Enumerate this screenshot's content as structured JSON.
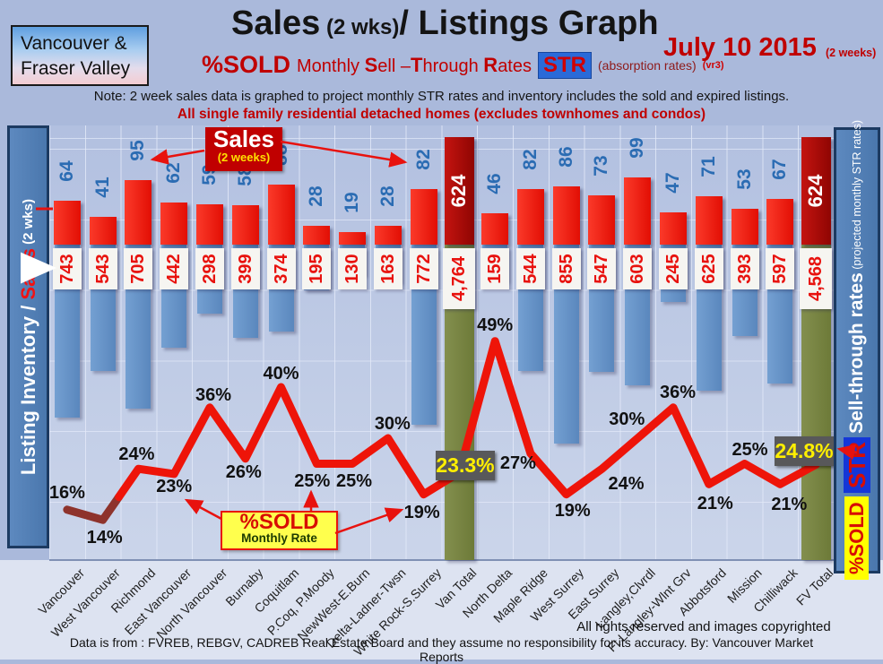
{
  "header": {
    "region_line1": "Vancouver &",
    "region_line2": "Fraser Valley",
    "title_main": "Sales",
    "title_paren": "(2 wks)",
    "title_rest": "/ Listings Graph",
    "date": "July 10 2015",
    "date_note": "(2 weeks)",
    "sold_label": "%SOLD",
    "str_phrase_parts": [
      [
        "Monthly ",
        0
      ],
      [
        "S",
        1
      ],
      [
        "ell –",
        0
      ],
      [
        "T",
        1
      ],
      [
        "hrough ",
        0
      ],
      [
        "R",
        1
      ],
      [
        "ates",
        0
      ]
    ],
    "str_badge": "STR",
    "absorption_note": "(absorption rates)",
    "version_note": "(vr3)",
    "note": "Note: 2 week sales data is graphed to project monthly STR rates and inventory includes the sold and expired listings.",
    "scope_note": "All single family residential detached homes (excludes townhomes and condos)"
  },
  "left_sidebar": {
    "label_white": "Listing Inventory / ",
    "label_red": "Sales",
    "label_small": " (2  wks)"
  },
  "right_sidebar": {
    "sold_badge": "%SOLD",
    "str_badge": "STR",
    "label": "Sell-through rates",
    "sublabel": " (projected monthly STR rates)"
  },
  "callouts": {
    "sales_title": "Sales",
    "sales_sub": "(2 weeks)",
    "sold_title": "%SOLD",
    "sold_sub": "Monthly Rate"
  },
  "footer": {
    "rights": "All rights reserved and  images copyrighted",
    "source": "Data is from : FVREB, REBGV, CADREB Real Estate Board and they assume no responsibility for its accuracy. By: Vancouver Market Reports"
  },
  "chart_data": {
    "type": "bar+line",
    "title": "Sales (2 wks)/ Listings Graph — %SOLD Monthly Sell-Through Rates (STR) — July 10 2015 (2 weeks)",
    "left_axis_label": "Listing Inventory / Sales (2 wks)",
    "right_axis_label": "Sell-through rates (projected monthly STR rates)",
    "legend_position": "none",
    "grid": true,
    "categories": [
      "Vancouver",
      "West Vancouver",
      "Richmond",
      "East Vancouver",
      "North Vancouver",
      "Burnaby",
      "Coquitlam",
      "P.Coq, P.Moody",
      "NewWest-E.Burn",
      "Delta-Ladner-Twsn",
      "White Rock-S.Surrey",
      "Van Total",
      "North Delta",
      "Maple Ridge",
      "West Surrey",
      "East Surrey",
      "Langley,Clvrdl",
      "Ft Langley-Wlnt Grv",
      "Abbotsford",
      "Mission",
      "Chilliwack",
      "FV Total"
    ],
    "series": [
      {
        "name": "Sales (2 weeks)",
        "type": "bar",
        "color": "#e8120e",
        "values": [
          64,
          41,
          95,
          62,
          59,
          58,
          88,
          28,
          19,
          28,
          82,
          624,
          46,
          82,
          86,
          73,
          99,
          47,
          71,
          53,
          67,
          624
        ]
      },
      {
        "name": "Listing Inventory (includes sold and expired listings)",
        "type": "bar",
        "color": "#6494c8",
        "values": [
          743,
          543,
          705,
          442,
          298,
          399,
          374,
          195,
          130,
          163,
          772,
          4764,
          159,
          544,
          855,
          547,
          603,
          245,
          625,
          393,
          597,
          4568
        ]
      },
      {
        "name": "%SOLD Monthly Sell-Through Rate",
        "type": "line",
        "color": "#e8120e",
        "values": [
          16,
          14,
          24,
          23,
          36,
          26,
          40,
          25,
          25,
          30,
          19,
          23.3,
          49,
          27,
          19,
          24,
          30,
          36,
          21,
          25,
          21,
          24.8
        ]
      }
    ],
    "sales_display": [
      "64",
      "41",
      "95",
      "62",
      "59",
      "58",
      "88",
      "28",
      "19",
      "28",
      "82",
      "624",
      "46",
      "82",
      "86",
      "73",
      "99",
      "47",
      "71",
      "53",
      "67",
      "624"
    ],
    "inventory_display": [
      "743",
      "543",
      "705",
      "442",
      "298",
      "399",
      "374",
      "195",
      "130",
      "163",
      "772",
      "4,764",
      "159",
      "544",
      "855",
      "547",
      "603",
      "245",
      "625",
      "393",
      "597",
      "4,568"
    ],
    "pct_display": [
      "16%",
      "14%",
      "24%",
      "23%",
      "36%",
      "26%",
      "40%",
      "25%",
      "25%",
      "30%",
      "19%",
      "23.3%",
      "49%",
      "27%",
      "19%",
      "24%",
      "30%",
      "36%",
      "21%",
      "25%",
      "21%",
      "24.8%"
    ],
    "total_indices": [
      11,
      21
    ],
    "total_colors": {
      "sales": "#a50b07",
      "inventory": "#76853f"
    },
    "pct_highlight_color": "#ffef00",
    "pct_highlight_bg": "#58585a"
  }
}
